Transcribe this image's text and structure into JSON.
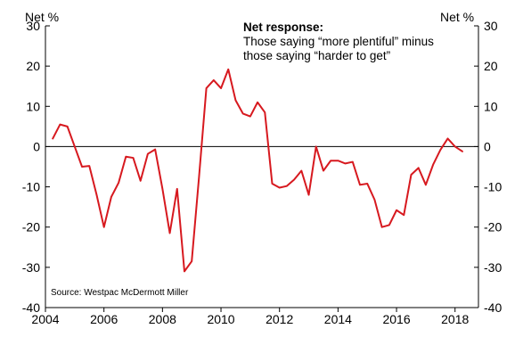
{
  "chart_data": {
    "type": "line",
    "title": "",
    "xlabel": "",
    "ylabel": "",
    "left_unit_label": "Net %",
    "right_unit_label": "Net %",
    "annotation": {
      "title": "Net response:",
      "lines": [
        "Those saying “more plentiful” minus",
        "those saying “harder to get”"
      ]
    },
    "source": "Source: Westpac McDermott Miller",
    "xlim": [
      2004,
      2018.8
    ],
    "ylim": [
      -40,
      30
    ],
    "x_ticks": [
      2004,
      2006,
      2008,
      2010,
      2012,
      2014,
      2016,
      2018
    ],
    "x_tick_labels": [
      "2004",
      "2006",
      "2008",
      "2010",
      "2012",
      "2014",
      "2016",
      "2018"
    ],
    "y_ticks": [
      -40,
      -30,
      -20,
      -10,
      0,
      10,
      20,
      30
    ],
    "y_tick_labels": [
      "-40",
      "-30",
      "-20",
      "-10",
      "0",
      "10",
      "20",
      "30"
    ],
    "grid": false,
    "zero_line": true,
    "colors": {
      "series": "#d7191f",
      "axis": "#000000"
    },
    "series": [
      {
        "values": [
          [
            2004.25,
            2
          ],
          [
            2004.5,
            5.5
          ],
          [
            2004.75,
            5
          ],
          [
            2005.0,
            0
          ],
          [
            2005.25,
            -5
          ],
          [
            2005.5,
            -4.8
          ],
          [
            2005.75,
            -12
          ],
          [
            2006.0,
            -20
          ],
          [
            2006.25,
            -12.5
          ],
          [
            2006.5,
            -9
          ],
          [
            2006.75,
            -2.5
          ],
          [
            2007.0,
            -2.8
          ],
          [
            2007.25,
            -8.5
          ],
          [
            2007.5,
            -1.8
          ],
          [
            2007.75,
            -0.7
          ],
          [
            2008.0,
            -10.5
          ],
          [
            2008.25,
            -21.5
          ],
          [
            2008.5,
            -10.5
          ],
          [
            2008.75,
            -31
          ],
          [
            2009.0,
            -28.5
          ],
          [
            2009.25,
            -7.5
          ],
          [
            2009.5,
            14.5
          ],
          [
            2009.75,
            16.5
          ],
          [
            2010.0,
            14.5
          ],
          [
            2010.25,
            19.2
          ],
          [
            2010.5,
            11.5
          ],
          [
            2010.75,
            8.2
          ],
          [
            2011.0,
            7.5
          ],
          [
            2011.25,
            11
          ],
          [
            2011.5,
            8.5
          ],
          [
            2011.75,
            -9.2
          ],
          [
            2012.0,
            -10.2
          ],
          [
            2012.25,
            -9.8
          ],
          [
            2012.5,
            -8.2
          ],
          [
            2012.75,
            -6
          ],
          [
            2013.0,
            -12
          ],
          [
            2013.25,
            0
          ],
          [
            2013.5,
            -6
          ],
          [
            2013.75,
            -3.5
          ],
          [
            2014.0,
            -3.5
          ],
          [
            2014.25,
            -4.2
          ],
          [
            2014.5,
            -3.8
          ],
          [
            2014.75,
            -9.5
          ],
          [
            2015.0,
            -9.2
          ],
          [
            2015.25,
            -13.2
          ],
          [
            2015.5,
            -20
          ],
          [
            2015.75,
            -19.5
          ],
          [
            2016.0,
            -15.8
          ],
          [
            2016.25,
            -17
          ],
          [
            2016.5,
            -7
          ],
          [
            2016.75,
            -5.3
          ],
          [
            2017.0,
            -9.5
          ],
          [
            2017.25,
            -4.5
          ],
          [
            2017.5,
            -0.8
          ],
          [
            2017.75,
            2
          ],
          [
            2018.0,
            0
          ],
          [
            2018.25,
            -1.2
          ]
        ]
      }
    ]
  }
}
